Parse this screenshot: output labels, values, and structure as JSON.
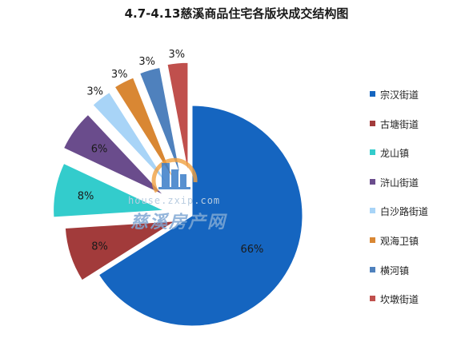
{
  "chart_data": {
    "type": "pie",
    "title": "4.7-4.13慈溪商品住宅各版块成交结构图",
    "categories": [
      "宗汉街道",
      "古塘街道",
      "龙山镇",
      "浒山街道",
      "白沙路街道",
      "观海卫镇",
      "横河镇",
      "坎墩街道"
    ],
    "values": [
      66,
      8,
      8,
      6,
      3,
      3,
      3,
      3
    ],
    "labels": [
      "66%",
      "8%",
      "8%",
      "6%",
      "3%",
      "3%",
      "3%",
      "3%"
    ],
    "colors": [
      "#1565C0",
      "#A23B3B",
      "#33CCCC",
      "#6A4C8C",
      "#A8D4F7",
      "#D98733",
      "#4F81BD",
      "#C0504D"
    ],
    "legend": "right"
  },
  "watermark": {
    "url": "house.zxip.com",
    "name": "慈溪房产网",
    "icon": "building-icon"
  }
}
